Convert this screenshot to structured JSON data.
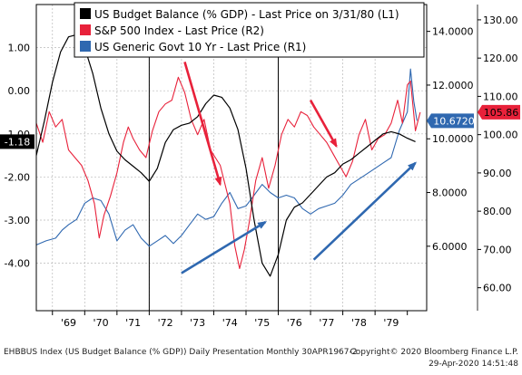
{
  "chart_data": {
    "type": "line",
    "x_tick_labels": [
      "'69",
      "'70",
      "'71",
      "'72",
      "'73",
      "'74",
      "'75",
      "'76",
      "'77",
      "'78",
      "'79"
    ],
    "x_range": [
      1968.5,
      1980.6
    ],
    "axes": {
      "left": {
        "ticks": [
          "1.00",
          "0.00",
          "-1.00",
          "-2.00",
          "-3.00",
          "-4.00"
        ],
        "tick_values": [
          1,
          0,
          -1,
          -2,
          -3,
          -4
        ],
        "range": [
          -5.1,
          2.0
        ]
      },
      "r1": {
        "ticks": [
          "14.0000",
          "12.0000",
          "10.0000",
          "8.0000",
          "6.0000"
        ],
        "tick_values": [
          14,
          12,
          10,
          8,
          6
        ],
        "range": [
          3.6,
          15.0
        ]
      },
      "r2": {
        "ticks": [
          "130.00",
          "120.00",
          "110.00",
          "100.00",
          "90.00",
          "80.00",
          "70.00",
          "60.00"
        ],
        "tick_values": [
          130,
          120,
          110,
          100,
          90,
          80,
          70,
          60
        ],
        "range": [
          54,
          134
        ]
      }
    },
    "legend_placement": "top",
    "series": [
      {
        "name": "US Budget Balance (% GDP) - Last Price on 3/31/80 (L1)",
        "axis": "left",
        "color": "#000000",
        "last_value": "-1.18",
        "points": [
          [
            1968.5,
            -1.5
          ],
          [
            1968.75,
            -0.7
          ],
          [
            1969.0,
            0.2
          ],
          [
            1969.25,
            0.9
          ],
          [
            1969.5,
            1.25
          ],
          [
            1969.75,
            1.3
          ],
          [
            1970.0,
            1.0
          ],
          [
            1970.25,
            0.4
          ],
          [
            1970.5,
            -0.4
          ],
          [
            1970.75,
            -1.0
          ],
          [
            1971.0,
            -1.4
          ],
          [
            1971.25,
            -1.6
          ],
          [
            1971.5,
            -1.75
          ],
          [
            1971.75,
            -1.9
          ],
          [
            1972.0,
            -2.1
          ],
          [
            1972.25,
            -1.8
          ],
          [
            1972.5,
            -1.2
          ],
          [
            1972.75,
            -0.9
          ],
          [
            1973.0,
            -0.8
          ],
          [
            1973.25,
            -0.75
          ],
          [
            1973.5,
            -0.6
          ],
          [
            1973.75,
            -0.3
          ],
          [
            1974.0,
            -0.1
          ],
          [
            1974.25,
            -0.15
          ],
          [
            1974.5,
            -0.4
          ],
          [
            1974.75,
            -0.9
          ],
          [
            1975.0,
            -1.8
          ],
          [
            1975.25,
            -3.0
          ],
          [
            1975.5,
            -4.0
          ],
          [
            1975.75,
            -4.3
          ],
          [
            1976.0,
            -3.8
          ],
          [
            1976.25,
            -3.0
          ],
          [
            1976.5,
            -2.7
          ],
          [
            1976.75,
            -2.6
          ],
          [
            1977.0,
            -2.4
          ],
          [
            1977.25,
            -2.2
          ],
          [
            1977.5,
            -2.0
          ],
          [
            1977.75,
            -1.9
          ],
          [
            1978.0,
            -1.7
          ],
          [
            1978.25,
            -1.6
          ],
          [
            1978.5,
            -1.45
          ],
          [
            1978.75,
            -1.3
          ],
          [
            1979.0,
            -1.15
          ],
          [
            1979.25,
            -1.0
          ],
          [
            1979.5,
            -0.95
          ],
          [
            1979.75,
            -1.0
          ],
          [
            1980.0,
            -1.1
          ],
          [
            1980.25,
            -1.18
          ]
        ]
      },
      {
        "name": "S&P 500 Index - Last Price (R2)",
        "axis": "r2",
        "color": "#e8213a",
        "last_value": "105.86",
        "points": [
          [
            1968.5,
            103
          ],
          [
            1968.7,
            98
          ],
          [
            1968.9,
            106
          ],
          [
            1969.1,
            102
          ],
          [
            1969.3,
            104
          ],
          [
            1969.5,
            96
          ],
          [
            1969.7,
            94
          ],
          [
            1969.9,
            92
          ],
          [
            1970.1,
            88
          ],
          [
            1970.3,
            82
          ],
          [
            1970.45,
            73
          ],
          [
            1970.6,
            79
          ],
          [
            1970.8,
            84
          ],
          [
            1971.0,
            90
          ],
          [
            1971.2,
            98
          ],
          [
            1971.35,
            102
          ],
          [
            1971.5,
            99
          ],
          [
            1971.7,
            96
          ],
          [
            1971.9,
            94
          ],
          [
            1972.1,
            101
          ],
          [
            1972.3,
            106
          ],
          [
            1972.5,
            108
          ],
          [
            1972.7,
            109
          ],
          [
            1972.9,
            115
          ],
          [
            1973.1,
            111
          ],
          [
            1973.3,
            104
          ],
          [
            1973.5,
            100
          ],
          [
            1973.7,
            104
          ],
          [
            1973.9,
            96
          ],
          [
            1974.05,
            94
          ],
          [
            1974.2,
            92
          ],
          [
            1974.35,
            87
          ],
          [
            1974.5,
            82
          ],
          [
            1974.65,
            71
          ],
          [
            1974.8,
            65
          ],
          [
            1974.95,
            70
          ],
          [
            1975.1,
            77
          ],
          [
            1975.3,
            88
          ],
          [
            1975.5,
            94
          ],
          [
            1975.7,
            86
          ],
          [
            1975.9,
            92
          ],
          [
            1976.1,
            100
          ],
          [
            1976.3,
            104
          ],
          [
            1976.5,
            102
          ],
          [
            1976.7,
            106
          ],
          [
            1976.9,
            105
          ],
          [
            1977.1,
            102
          ],
          [
            1977.3,
            100
          ],
          [
            1977.5,
            98
          ],
          [
            1977.7,
            95
          ],
          [
            1977.9,
            92
          ],
          [
            1978.1,
            89
          ],
          [
            1978.3,
            93
          ],
          [
            1978.5,
            100
          ],
          [
            1978.7,
            104
          ],
          [
            1978.9,
            96
          ],
          [
            1979.1,
            99
          ],
          [
            1979.3,
            100
          ],
          [
            1979.5,
            103
          ],
          [
            1979.7,
            109
          ],
          [
            1979.85,
            103
          ],
          [
            1980.0,
            113
          ],
          [
            1980.1,
            114
          ],
          [
            1980.25,
            101
          ],
          [
            1980.4,
            105.86
          ]
        ]
      },
      {
        "name": "US Generic Govt 10 Yr - Last Price (R1)",
        "axis": "r1",
        "color": "#2f68b0",
        "last_value": "10.6720",
        "points": [
          [
            1968.5,
            6.05
          ],
          [
            1968.8,
            6.2
          ],
          [
            1969.1,
            6.3
          ],
          [
            1969.3,
            6.6
          ],
          [
            1969.5,
            6.8
          ],
          [
            1969.75,
            7.0
          ],
          [
            1970.0,
            7.6
          ],
          [
            1970.25,
            7.8
          ],
          [
            1970.5,
            7.7
          ],
          [
            1970.75,
            7.2
          ],
          [
            1971.0,
            6.2
          ],
          [
            1971.25,
            6.6
          ],
          [
            1971.5,
            6.8
          ],
          [
            1971.75,
            6.3
          ],
          [
            1972.0,
            6.0
          ],
          [
            1972.25,
            6.2
          ],
          [
            1972.5,
            6.4
          ],
          [
            1972.75,
            6.1
          ],
          [
            1973.0,
            6.4
          ],
          [
            1973.25,
            6.8
          ],
          [
            1973.5,
            7.2
          ],
          [
            1973.75,
            7.0
          ],
          [
            1974.0,
            7.1
          ],
          [
            1974.25,
            7.6
          ],
          [
            1974.5,
            8.0
          ],
          [
            1974.75,
            7.4
          ],
          [
            1975.0,
            7.5
          ],
          [
            1975.25,
            7.9
          ],
          [
            1975.5,
            8.3
          ],
          [
            1975.75,
            8.0
          ],
          [
            1976.0,
            7.8
          ],
          [
            1976.25,
            7.9
          ],
          [
            1976.5,
            7.8
          ],
          [
            1976.75,
            7.4
          ],
          [
            1977.0,
            7.2
          ],
          [
            1977.25,
            7.4
          ],
          [
            1977.5,
            7.5
          ],
          [
            1977.75,
            7.6
          ],
          [
            1978.0,
            7.9
          ],
          [
            1978.25,
            8.3
          ],
          [
            1978.5,
            8.5
          ],
          [
            1978.75,
            8.7
          ],
          [
            1979.0,
            8.9
          ],
          [
            1979.25,
            9.1
          ],
          [
            1979.5,
            9.3
          ],
          [
            1979.75,
            10.3
          ],
          [
            1980.0,
            11.0
          ],
          [
            1980.1,
            12.6
          ],
          [
            1980.2,
            11.4
          ],
          [
            1980.3,
            10.672
          ]
        ]
      }
    ],
    "annotations": [
      {
        "type": "vertical-line",
        "x": 1972.0
      },
      {
        "type": "vertical-line",
        "x": 1976.0
      },
      {
        "type": "arrow",
        "color": "red",
        "from": [
          1973.1,
          119
        ],
        "to": [
          1974.2,
          87
        ]
      },
      {
        "type": "arrow",
        "color": "red",
        "from": [
          1977.0,
          109
        ],
        "to": [
          1977.8,
          97
        ]
      },
      {
        "type": "arrow",
        "color": "blue",
        "from": [
          1973.0,
          5.0
        ],
        "to": [
          1975.6,
          6.9
        ]
      },
      {
        "type": "arrow",
        "color": "blue",
        "from": [
          1977.1,
          5.5
        ],
        "to": [
          1980.25,
          9.1
        ]
      }
    ]
  },
  "footer": {
    "left": "EHBBUS Index (US Budget Balance (% GDP)) Daily Presentation  Monthly 30APR1967-2",
    "right": "Copyright© 2020 Bloomberg Finance L.P.",
    "timestamp": "29-Apr-2020 14:51:48"
  }
}
